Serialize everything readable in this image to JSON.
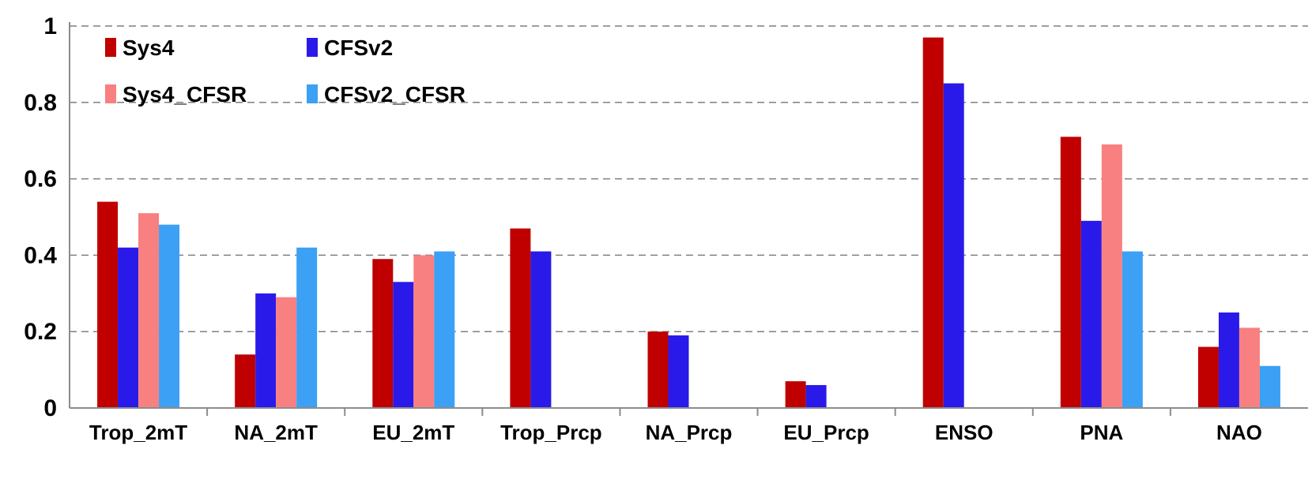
{
  "chart_data": {
    "type": "bar",
    "title": "",
    "xlabel": "",
    "ylabel": "",
    "ylim": [
      0,
      1
    ],
    "yticks": [
      0,
      0.2,
      0.4,
      0.6,
      0.8,
      1
    ],
    "ytick_labels": [
      "0",
      "0.2",
      "0.4",
      "0.6",
      "0.8",
      "1"
    ],
    "grid": "horizontal dashed",
    "legend_position": "top-left",
    "categories": [
      "Trop_2mT",
      "NA_2mT",
      "EU_2mT",
      "Trop_Prcp",
      "NA_Prcp",
      "EU_Prcp",
      "ENSO",
      "PNA",
      "NAO"
    ],
    "series": [
      {
        "name": "Sys4",
        "color": "#c00000",
        "values": [
          0.54,
          0.14,
          0.39,
          0.47,
          0.2,
          0.07,
          0.97,
          0.71,
          0.16
        ]
      },
      {
        "name": "CFSv2",
        "color": "#2a1aea",
        "values": [
          0.42,
          0.3,
          0.33,
          0.41,
          0.19,
          0.06,
          0.85,
          0.49,
          0.25
        ]
      },
      {
        "name": "Sys4_CFSR",
        "color": "#f88080",
        "values": [
          0.51,
          0.29,
          0.4,
          null,
          null,
          null,
          null,
          0.69,
          0.21
        ]
      },
      {
        "name": "CFSv2_CFSR",
        "color": "#3ca0f5",
        "values": [
          0.48,
          0.42,
          0.41,
          null,
          null,
          null,
          null,
          0.41,
          0.11
        ]
      }
    ]
  }
}
